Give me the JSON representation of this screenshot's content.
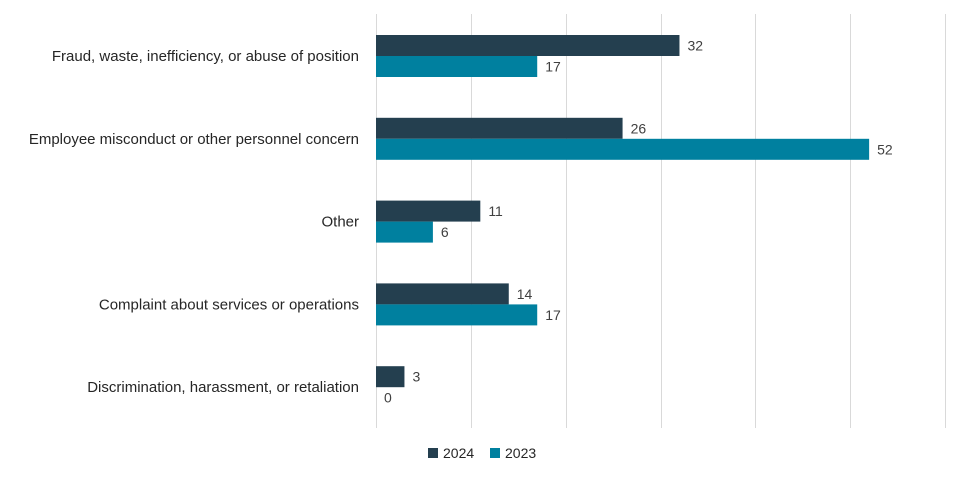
{
  "chart_data": {
    "type": "bar",
    "orientation": "horizontal",
    "title": "",
    "xlabel": "",
    "ylabel": "",
    "xlim": [
      0,
      60
    ],
    "grid": true,
    "legend_position": "bottom",
    "categories": [
      "Fraud, waste, inefficiency, or abuse of position",
      "Employee misconduct or other personnel concern",
      "Other",
      "Complaint about services or operations",
      "Discrimination, harassment, or retaliation"
    ],
    "series": [
      {
        "name": "2024",
        "color": "#243f4f",
        "values": [
          32,
          26,
          11,
          14,
          3
        ]
      },
      {
        "name": "2023",
        "color": "#00809f",
        "values": [
          17,
          52,
          6,
          17,
          0
        ]
      }
    ]
  }
}
